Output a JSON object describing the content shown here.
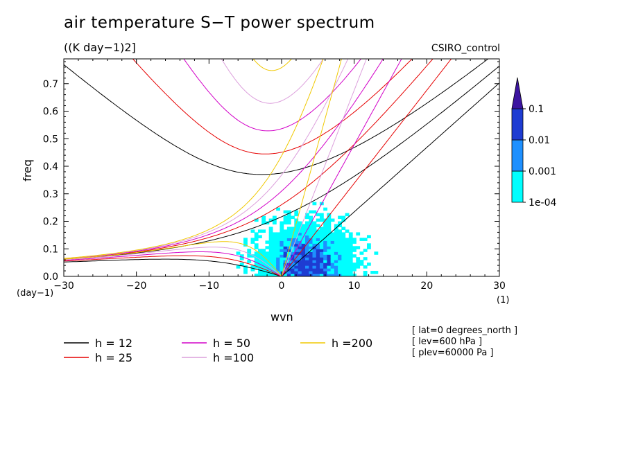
{
  "title": "air temperature S−T power spectrum",
  "units": "((K day−1)2]",
  "dataset": "CSIRO_control",
  "x_unit": "(1)",
  "y_unit": "(day−1)",
  "info": [
    "[ lat=0 degrees_north ]",
    "[ lev=600 hPa ]",
    "[ plev=60000 Pa ]"
  ],
  "chart_data": {
    "type": "heatmap",
    "title": "air temperature S−T power spectrum",
    "xlabel": "wvn",
    "ylabel": "freq",
    "xlim": [
      -30,
      30
    ],
    "ylim": [
      0,
      0.79
    ],
    "xticks": [
      -30,
      -20,
      -10,
      0,
      10,
      20,
      30
    ],
    "yticks": [
      0.0,
      0.1,
      0.2,
      0.3,
      0.4,
      0.5,
      0.6,
      0.7
    ],
    "colorbar": {
      "levels": [
        "1e-04",
        "0.001",
        "0.01",
        "0.1"
      ],
      "colors": [
        "#00ffff",
        "#1e90ff",
        "#1e3cd2",
        "#3c14a0"
      ]
    },
    "dispersion_curves": [
      {
        "name": "h = 12",
        "color": "#000000",
        "h": 12
      },
      {
        "name": "h = 25",
        "color": "#e60000",
        "h": 25
      },
      {
        "name": "h = 50",
        "color": "#d200c8",
        "h": 50
      },
      {
        "name": "h =100",
        "color": "#dc9fdc",
        "h": 100
      },
      {
        "name": "h =200",
        "color": "#f0c800",
        "h": 200
      }
    ]
  }
}
